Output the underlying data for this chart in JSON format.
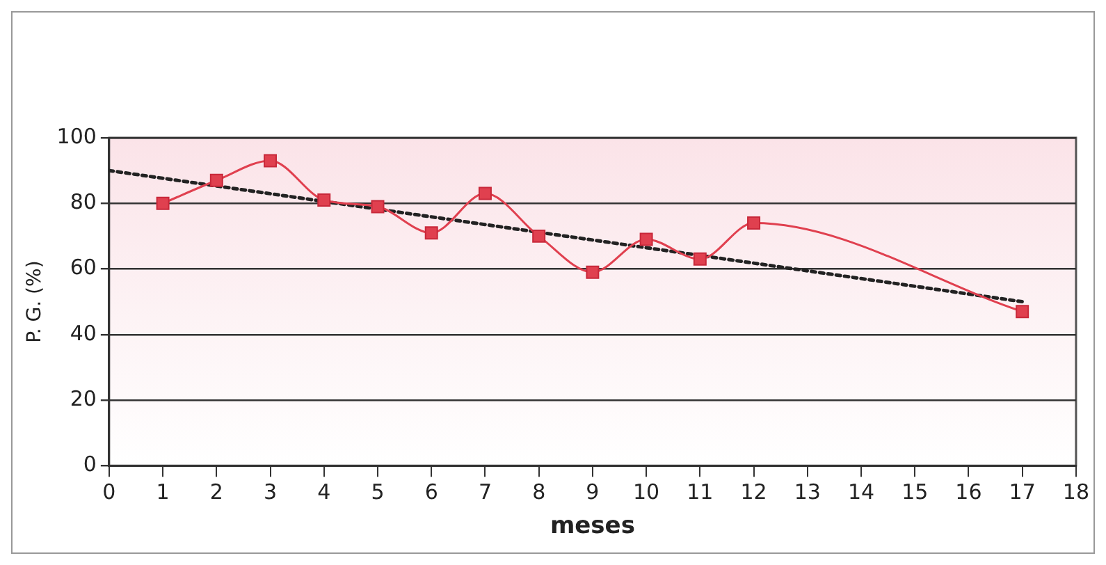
{
  "chart_data": {
    "type": "line",
    "xlabel": "meses",
    "ylabel": "P. G. (%)",
    "xlim": [
      0,
      18
    ],
    "xticks": [
      0,
      1,
      2,
      3,
      4,
      5,
      6,
      7,
      8,
      9,
      10,
      11,
      12,
      13,
      14,
      15,
      16,
      17,
      18
    ],
    "ylim": [
      0,
      100
    ],
    "yticks": [
      0,
      20,
      40,
      60,
      80,
      100
    ],
    "grid": "y",
    "legend": false,
    "x": [
      1,
      2,
      3,
      4,
      5,
      6,
      7,
      8,
      9,
      10,
      11,
      12,
      17
    ],
    "series": [
      {
        "color": "#e0404f",
        "marker": "square",
        "line_style": "solid",
        "values": [
          80,
          87,
          93,
          81,
          79,
          71,
          83,
          70,
          59,
          69,
          63,
          74,
          47
        ]
      },
      {
        "type": "line",
        "color": "#222222",
        "marker": "none",
        "line_style": "dotted",
        "x": [
          0,
          17
        ],
        "values": [
          90,
          50
        ]
      }
    ]
  }
}
